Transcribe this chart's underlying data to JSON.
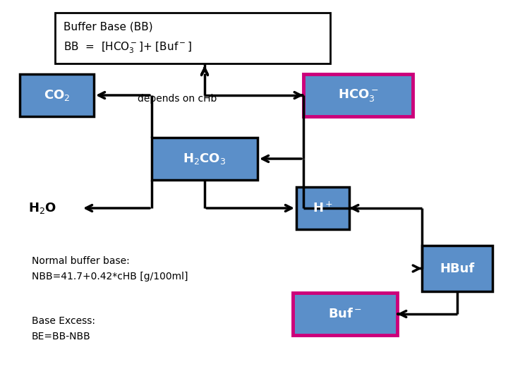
{
  "bg_color": "#ffffff",
  "box_fill": "#5b8fc9",
  "pink_border": "#cc007a",
  "black": "#000000",
  "header_text_line1": "Buffer Base (BB)",
  "header_text_line2": "BB  =  [HCO$_3^-$]+ [Buf$^-$]",
  "depends_text": "depends on cHb",
  "normal_buffer_text1": "Normal buffer base:",
  "normal_buffer_text2": "NBB=41.7+0.42*cHB [g/100ml]",
  "base_excess_text1": "Base Excess:",
  "base_excess_text2": "BE=BB-NBB"
}
